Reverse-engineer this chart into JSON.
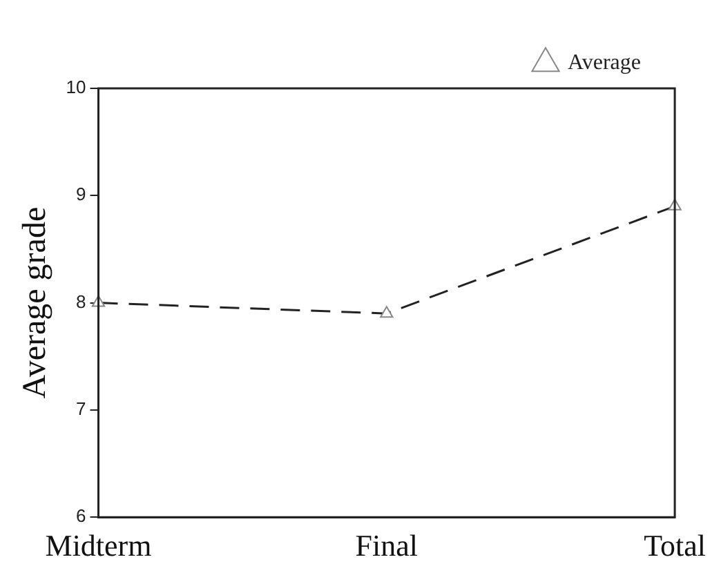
{
  "chart_data": {
    "type": "line",
    "ylabel": "Average grade",
    "categories": [
      "Midterm",
      "Final",
      "Total"
    ],
    "series": [
      {
        "name": "Average",
        "color": "#222222",
        "values": [
          8.0,
          7.9,
          8.9
        ]
      }
    ],
    "ylim": [
      6,
      10
    ],
    "yticks": [
      6,
      7,
      8,
      9,
      10
    ],
    "grid": false,
    "legend": "top right",
    "marker": "triangle",
    "line_style": "dashed"
  }
}
